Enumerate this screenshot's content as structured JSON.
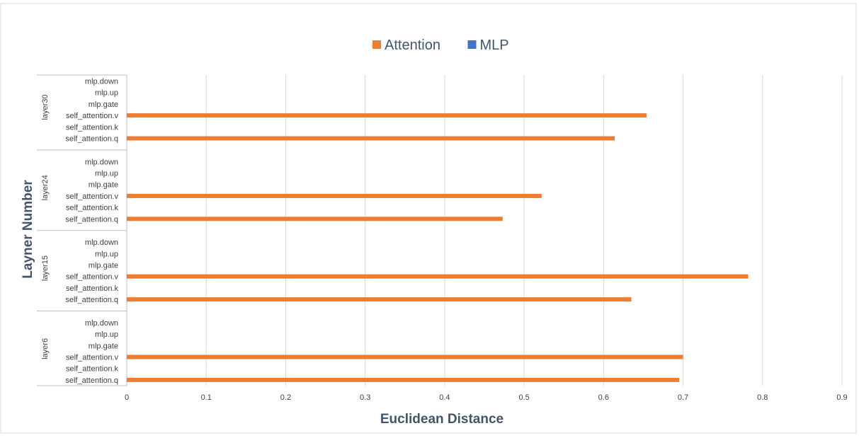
{
  "chart_data": {
    "type": "bar",
    "orientation": "horizontal",
    "xlabel": "Euclidean Distance",
    "ylabel": "Layner Number",
    "xlim": [
      0,
      0.9
    ],
    "xticks": [
      "0",
      "0.1",
      "0.2",
      "0.3",
      "0.4",
      "0.5",
      "0.6",
      "0.7",
      "0.8",
      "0.9"
    ],
    "grid": "vertical",
    "legend_position": "top-center",
    "groups": [
      {
        "name": "layer30",
        "rows": [
          {
            "label": "mlp.down",
            "series": "MLP",
            "value": 0
          },
          {
            "label": "mlp.up",
            "series": "MLP",
            "value": 0
          },
          {
            "label": "mlp.gate",
            "series": "MLP",
            "value": 0
          },
          {
            "label": "self_attention.v",
            "series": "Attention",
            "value": 0.654
          },
          {
            "label": "self_attention.k",
            "series": "Attention",
            "value": 0
          },
          {
            "label": "self_attention.q",
            "series": "Attention",
            "value": 0.614
          }
        ]
      },
      {
        "name": "layer24",
        "rows": [
          {
            "label": "mlp.down",
            "series": "MLP",
            "value": 0
          },
          {
            "label": "mlp.up",
            "series": "MLP",
            "value": 0
          },
          {
            "label": "mlp.gate",
            "series": "MLP",
            "value": 0
          },
          {
            "label": "self_attention.v",
            "series": "Attention",
            "value": 0.522
          },
          {
            "label": "self_attention.k",
            "series": "Attention",
            "value": 0
          },
          {
            "label": "self_attention.q",
            "series": "Attention",
            "value": 0.473
          }
        ]
      },
      {
        "name": "layer15",
        "rows": [
          {
            "label": "mlp.down",
            "series": "MLP",
            "value": 0
          },
          {
            "label": "mlp.up",
            "series": "MLP",
            "value": 0
          },
          {
            "label": "mlp.gate",
            "series": "MLP",
            "value": 0
          },
          {
            "label": "self_attention.v",
            "series": "Attention",
            "value": 0.782
          },
          {
            "label": "self_attention.k",
            "series": "Attention",
            "value": 0
          },
          {
            "label": "self_attention.q",
            "series": "Attention",
            "value": 0.635
          }
        ]
      },
      {
        "name": "layer6",
        "rows": [
          {
            "label": "mlp.down",
            "series": "MLP",
            "value": 0
          },
          {
            "label": "mlp.up",
            "series": "MLP",
            "value": 0
          },
          {
            "label": "mlp.gate",
            "series": "MLP",
            "value": 0
          },
          {
            "label": "self_attention.v",
            "series": "Attention",
            "value": 0.7
          },
          {
            "label": "self_attention.k",
            "series": "Attention",
            "value": 0
          },
          {
            "label": "self_attention.q",
            "series": "Attention",
            "value": 0.695
          }
        ]
      }
    ],
    "series": [
      {
        "name": "Attention",
        "color": "#ed7d31"
      },
      {
        "name": "MLP",
        "color": "#4472c4"
      }
    ]
  },
  "colors": {
    "text": "#404040",
    "title_text": "#44546a",
    "grid": "#d9d9d9",
    "axis": "#bfbfbf",
    "border": "#d9d9d9"
  }
}
